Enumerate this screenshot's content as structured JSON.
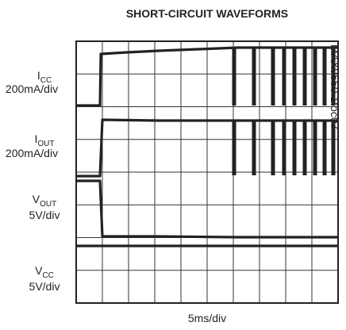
{
  "chart_data": {
    "type": "oscilloscope",
    "title": "SHORT-CIRCUIT WAVEFORMS",
    "x_label": "5ms/div",
    "watermark": "MAX9550 1toc07",
    "channels": [
      {
        "symbol": "I",
        "subscript": "CC",
        "scale": "200mA/div"
      },
      {
        "symbol": "I",
        "subscript": "OUT",
        "scale": "200mA/div"
      },
      {
        "symbol": "V",
        "subscript": "OUT",
        "scale": "5V/div"
      },
      {
        "symbol": "V",
        "subscript": "CC",
        "scale": "5V/div"
      }
    ]
  }
}
